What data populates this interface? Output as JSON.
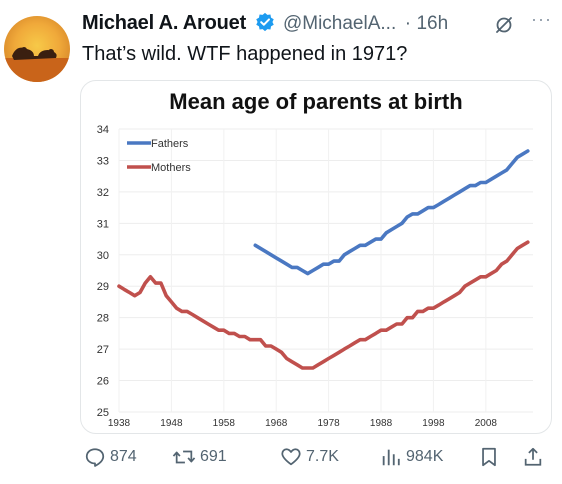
{
  "tweet": {
    "author_name": "Michael A. Arouet",
    "handle": "@MichaelA...",
    "separator": "·",
    "time": "16h",
    "more": "···",
    "text": "That’s wild. WTF happened in 1971?"
  },
  "icons": {
    "verified": "verified-badge-icon",
    "grok": "grok-icon",
    "more": "more-icon",
    "reply": "reply-icon",
    "retweet": "retweet-icon",
    "like": "like-icon",
    "views": "views-icon",
    "bookmark": "bookmark-icon",
    "share": "share-icon"
  },
  "colors": {
    "fathers": "#4a78c2",
    "mothers": "#c0504d",
    "verified": "#1d9bf0"
  },
  "actions": {
    "replies": "874",
    "reposts": "691",
    "likes": "7.7K",
    "views": "984K"
  },
  "chart_data": {
    "type": "line",
    "title": "Mean age of parents at birth",
    "xlabel": "",
    "ylabel": "",
    "xlim": [
      1938,
      2017
    ],
    "ylim": [
      25,
      34
    ],
    "x_ticks": [
      1938,
      1948,
      1958,
      1968,
      1978,
      1988,
      1998,
      2008
    ],
    "y_ticks": [
      25,
      26,
      27,
      28,
      29,
      30,
      31,
      32,
      33,
      34
    ],
    "grid": true,
    "legend_position": "top-left",
    "series": [
      {
        "name": "Fathers",
        "color": "#4a78c2",
        "x": [
          1964,
          1966,
          1968,
          1969,
          1970,
          1971,
          1972,
          1973,
          1974,
          1975,
          1976,
          1977,
          1978,
          1979,
          1980,
          1981,
          1982,
          1983,
          1984,
          1985,
          1986,
          1987,
          1988,
          1989,
          1990,
          1991,
          1992,
          1993,
          1994,
          1995,
          1996,
          1997,
          1998,
          1999,
          2000,
          2001,
          2002,
          2003,
          2004,
          2005,
          2006,
          2007,
          2008,
          2009,
          2010,
          2011,
          2012,
          2013,
          2014,
          2015,
          2016
        ],
        "y": [
          30.3,
          30.1,
          29.9,
          29.8,
          29.7,
          29.6,
          29.6,
          29.5,
          29.4,
          29.5,
          29.6,
          29.7,
          29.7,
          29.8,
          29.8,
          30.0,
          30.1,
          30.2,
          30.3,
          30.3,
          30.4,
          30.5,
          30.5,
          30.7,
          30.8,
          30.9,
          31.0,
          31.2,
          31.3,
          31.3,
          31.4,
          31.5,
          31.5,
          31.6,
          31.7,
          31.8,
          31.9,
          32.0,
          32.1,
          32.2,
          32.2,
          32.3,
          32.3,
          32.4,
          32.5,
          32.6,
          32.7,
          32.9,
          33.1,
          33.2,
          33.3
        ]
      },
      {
        "name": "Mothers",
        "color": "#c0504d",
        "x": [
          1938,
          1939,
          1940,
          1941,
          1942,
          1943,
          1944,
          1945,
          1946,
          1947,
          1948,
          1949,
          1950,
          1951,
          1952,
          1953,
          1954,
          1955,
          1956,
          1957,
          1958,
          1959,
          1960,
          1961,
          1962,
          1963,
          1964,
          1965,
          1966,
          1967,
          1968,
          1969,
          1970,
          1971,
          1972,
          1973,
          1974,
          1975,
          1976,
          1977,
          1978,
          1979,
          1980,
          1981,
          1982,
          1983,
          1984,
          1985,
          1986,
          1987,
          1988,
          1989,
          1990,
          1991,
          1992,
          1993,
          1994,
          1995,
          1996,
          1997,
          1998,
          1999,
          2000,
          2001,
          2002,
          2003,
          2004,
          2005,
          2006,
          2007,
          2008,
          2009,
          2010,
          2011,
          2012,
          2013,
          2014,
          2015,
          2016
        ],
        "y": [
          29.0,
          28.9,
          28.8,
          28.7,
          28.8,
          29.1,
          29.3,
          29.1,
          29.1,
          28.7,
          28.5,
          28.3,
          28.2,
          28.2,
          28.1,
          28.0,
          27.9,
          27.8,
          27.7,
          27.6,
          27.6,
          27.5,
          27.5,
          27.4,
          27.4,
          27.3,
          27.3,
          27.3,
          27.1,
          27.1,
          27.0,
          26.9,
          26.7,
          26.6,
          26.5,
          26.4,
          26.4,
          26.4,
          26.5,
          26.6,
          26.7,
          26.8,
          26.9,
          27.0,
          27.1,
          27.2,
          27.3,
          27.3,
          27.4,
          27.5,
          27.6,
          27.6,
          27.7,
          27.8,
          27.8,
          28.0,
          28.0,
          28.2,
          28.2,
          28.3,
          28.3,
          28.4,
          28.5,
          28.6,
          28.7,
          28.8,
          29.0,
          29.1,
          29.2,
          29.3,
          29.3,
          29.4,
          29.5,
          29.7,
          29.8,
          30.0,
          30.2,
          30.3,
          30.4
        ]
      }
    ]
  }
}
